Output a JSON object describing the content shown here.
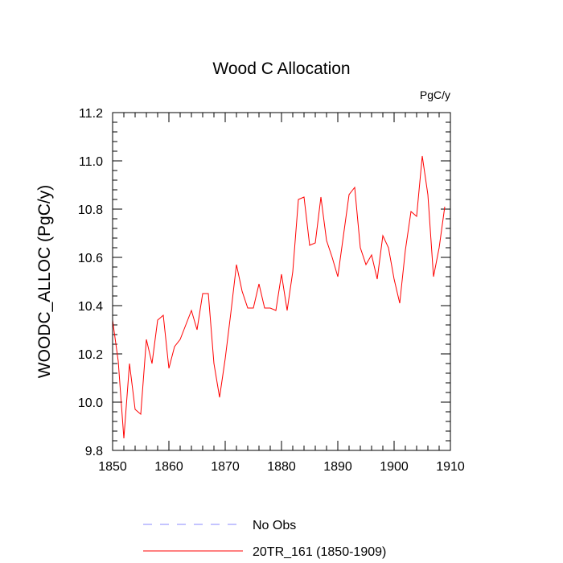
{
  "chart_data": {
    "type": "line",
    "title": "Wood C Allocation",
    "units_label": "PgC/y",
    "ylabel": "WOODC_ALLOC  (PgC/y)",
    "xlabel": "",
    "xlim": [
      1850,
      1910
    ],
    "ylim": [
      9.8,
      11.2
    ],
    "x_ticks": [
      "1850",
      "1860",
      "1870",
      "1880",
      "1890",
      "1900",
      "1910"
    ],
    "y_ticks": [
      "9.8",
      "10.0",
      "10.2",
      "10.4",
      "10.6",
      "10.8",
      "11.0",
      "11.2"
    ],
    "grid": false,
    "legend_position": "bottom",
    "series": [
      {
        "name": "20TR_161 (1850-1909)",
        "color": "#ff0000",
        "style": "solid",
        "x": [
          1850,
          1851,
          1852,
          1853,
          1854,
          1855,
          1856,
          1857,
          1858,
          1859,
          1860,
          1861,
          1862,
          1863,
          1864,
          1865,
          1866,
          1867,
          1868,
          1869,
          1870,
          1871,
          1872,
          1873,
          1874,
          1875,
          1876,
          1877,
          1878,
          1879,
          1880,
          1881,
          1882,
          1883,
          1884,
          1885,
          1886,
          1887,
          1888,
          1889,
          1890,
          1891,
          1892,
          1893,
          1894,
          1895,
          1896,
          1897,
          1898,
          1899,
          1900,
          1901,
          1902,
          1903,
          1904,
          1905,
          1906,
          1907,
          1908,
          1909
        ],
        "values": [
          10.34,
          10.17,
          9.85,
          10.16,
          9.97,
          9.95,
          10.26,
          10.16,
          10.34,
          10.36,
          10.14,
          10.23,
          10.26,
          10.32,
          10.38,
          10.3,
          10.45,
          10.45,
          10.16,
          10.02,
          10.18,
          10.37,
          10.57,
          10.46,
          10.39,
          10.39,
          10.49,
          10.39,
          10.39,
          10.38,
          10.53,
          10.38,
          10.54,
          10.84,
          10.85,
          10.65,
          10.66,
          10.85,
          10.67,
          10.6,
          10.52,
          10.69,
          10.86,
          10.89,
          10.64,
          10.57,
          10.61,
          10.51,
          10.69,
          10.64,
          10.51,
          10.41,
          10.63,
          10.79,
          10.77,
          11.02,
          10.86,
          10.52,
          10.64,
          10.81
        ]
      }
    ],
    "legend": [
      {
        "label": "No Obs",
        "color": "#8888ff",
        "style": "dashed"
      },
      {
        "label": "20TR_161 (1850-1909)",
        "color": "#ff0000",
        "style": "solid"
      }
    ]
  }
}
